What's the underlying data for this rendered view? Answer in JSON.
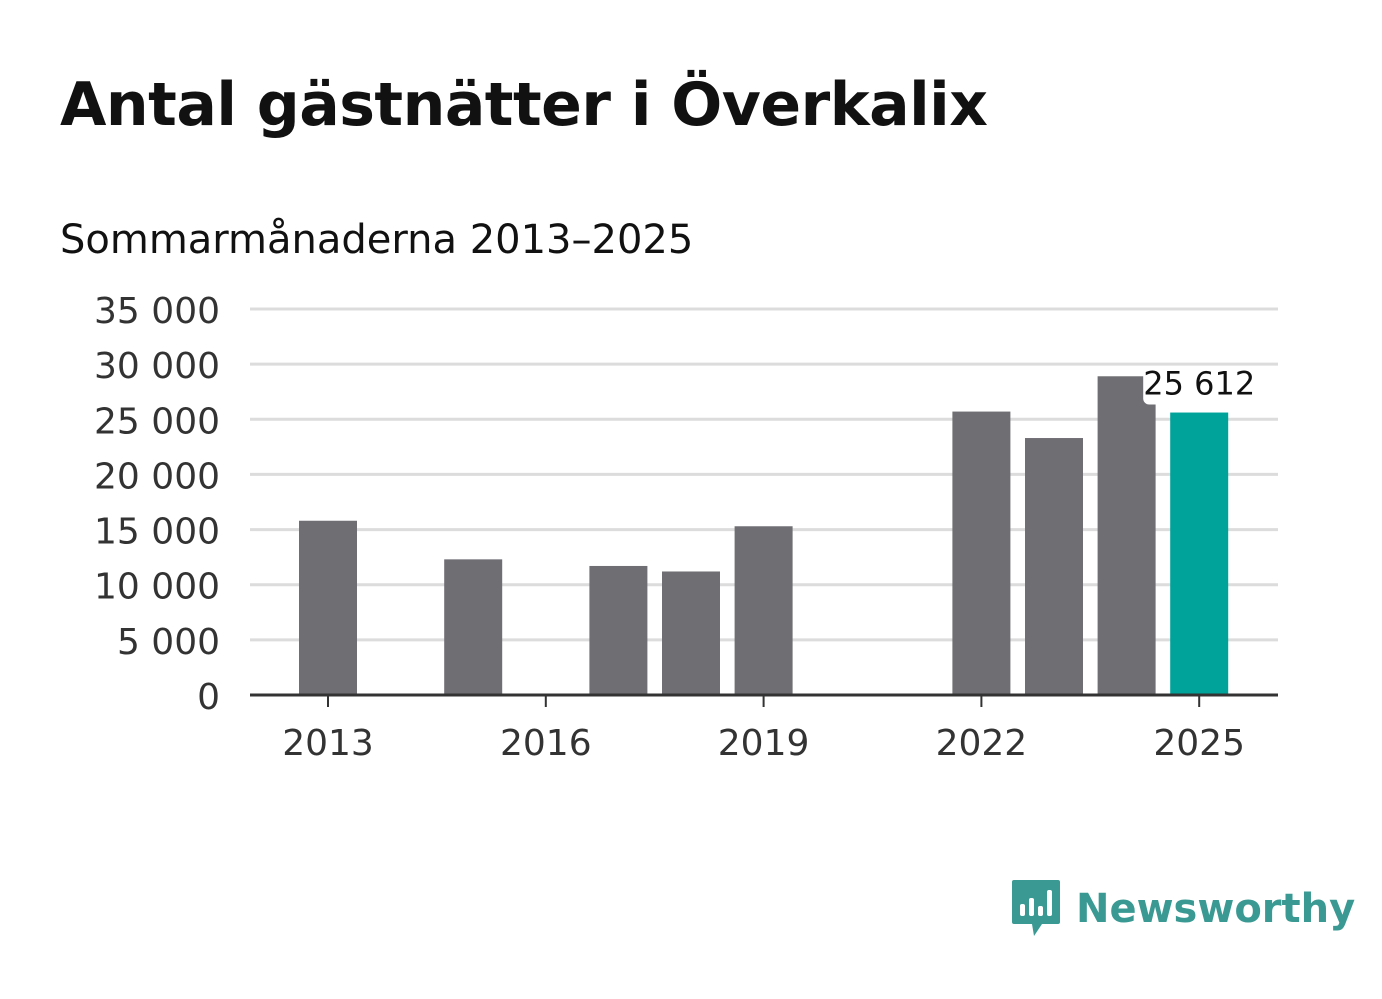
{
  "header": {
    "title": "Antal gästnätter i Överkalix",
    "subtitle": "Sommarmånaderna 2013–2025"
  },
  "brand": {
    "name": "Newsworthy",
    "icon": "bar-chart-speech-bubble-icon",
    "color": "#3a9a93"
  },
  "chart_data": {
    "type": "bar",
    "title": "Antal gästnätter i Överkalix",
    "subtitle": "Sommarmånaderna 2013–2025",
    "categories": [
      "2013",
      "2014",
      "2015",
      "2016",
      "2017",
      "2018",
      "2019",
      "2020",
      "2021",
      "2022",
      "2023",
      "2024",
      "2025"
    ],
    "values": [
      15800,
      null,
      12300,
      null,
      11700,
      11200,
      15300,
      null,
      null,
      25700,
      23300,
      28900,
      25612
    ],
    "x_tick_labels": [
      "2013",
      "2016",
      "2019",
      "2022",
      "2025"
    ],
    "y_tick_labels": [
      "0",
      "5 000",
      "10 000",
      "15 000",
      "20 000",
      "25 000",
      "30 000",
      "35 000"
    ],
    "ylim": [
      0,
      35000
    ],
    "grid": true,
    "highlight": {
      "category": "2025",
      "label": "25 612"
    },
    "colors": {
      "bar": "#6f6e73",
      "highlight": "#00a39a",
      "grid": "#dcdcdc",
      "axis": "#333333",
      "text": "#333333"
    }
  }
}
